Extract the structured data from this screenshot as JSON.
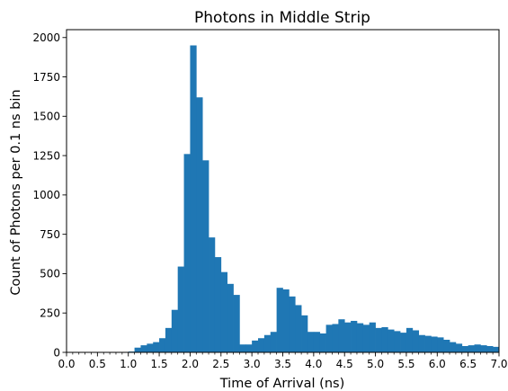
{
  "chart_data": {
    "type": "bar",
    "title": "Photons in Middle Strip",
    "xlabel": "Time of Arrival (ns)",
    "ylabel": "Count of Photons per 0.1 ns bin",
    "xlim": [
      0,
      7.0
    ],
    "ylim": [
      0,
      2050
    ],
    "bin_width": 0.1,
    "x_ticks": [
      "0.0",
      "0.5",
      "1.0",
      "1.5",
      "2.0",
      "2.5",
      "3.0",
      "3.5",
      "4.0",
      "4.5",
      "5.0",
      "5.5",
      "6.0",
      "6.5",
      "7.0"
    ],
    "y_ticks": [
      "0",
      "250",
      "500",
      "750",
      "1000",
      "1250",
      "1500",
      "1750",
      "2000"
    ],
    "grid": false,
    "bar_color": "#1f77b4",
    "bin_starts": [
      0.0,
      0.1,
      0.2,
      0.3,
      0.4,
      0.5,
      0.6,
      0.7,
      0.8,
      0.9,
      1.0,
      1.1,
      1.2,
      1.3,
      1.4,
      1.5,
      1.6,
      1.7,
      1.8,
      1.9,
      2.0,
      2.1,
      2.2,
      2.3,
      2.4,
      2.5,
      2.6,
      2.7,
      2.8,
      2.9,
      3.0,
      3.1,
      3.2,
      3.3,
      3.4,
      3.5,
      3.6,
      3.7,
      3.8,
      3.9,
      4.0,
      4.1,
      4.2,
      4.3,
      4.4,
      4.5,
      4.6,
      4.7,
      4.8,
      4.9,
      5.0,
      5.1,
      5.2,
      5.3,
      5.4,
      5.5,
      5.6,
      5.7,
      5.8,
      5.9,
      6.0,
      6.1,
      6.2,
      6.3,
      6.4,
      6.5,
      6.6,
      6.7,
      6.8,
      6.9
    ],
    "values": [
      0,
      0,
      0,
      0,
      0,
      0,
      0,
      0,
      0,
      0,
      5,
      30,
      45,
      55,
      65,
      90,
      155,
      270,
      545,
      1260,
      1950,
      1620,
      1220,
      730,
      605,
      510,
      435,
      365,
      50,
      50,
      75,
      90,
      110,
      130,
      410,
      400,
      355,
      300,
      235,
      130,
      130,
      120,
      175,
      180,
      210,
      190,
      200,
      185,
      175,
      190,
      155,
      160,
      145,
      135,
      125,
      155,
      140,
      110,
      105,
      100,
      95,
      80,
      65,
      55,
      40,
      45,
      50,
      45,
      40,
      35
    ]
  }
}
